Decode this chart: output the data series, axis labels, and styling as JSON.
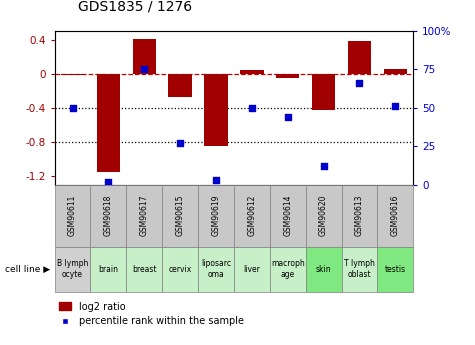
{
  "title": "GDS1835 / 1276",
  "gsm_labels": [
    "GSM90611",
    "GSM90618",
    "GSM90617",
    "GSM90615",
    "GSM90619",
    "GSM90612",
    "GSM90614",
    "GSM90620",
    "GSM90613",
    "GSM90616"
  ],
  "cell_line_labels": [
    "B lymph\nocyte",
    "brain",
    "breast",
    "cervix",
    "liposarc\noma",
    "liver",
    "macroph\nage",
    "skin",
    "T lymph\noblast",
    "testis"
  ],
  "cell_line_colors": [
    "#d0d0d0",
    "#c8f0c8",
    "#c8f0c8",
    "#c8f0c8",
    "#c8f0c8",
    "#c8f0c8",
    "#c8f0c8",
    "#80e880",
    "#c8f0c8",
    "#80e880"
  ],
  "gsm_box_color": "#c8c8c8",
  "log2_ratio": [
    -0.02,
    -1.15,
    0.41,
    -0.27,
    -0.85,
    0.04,
    -0.05,
    -0.42,
    0.38,
    0.06
  ],
  "percentile_rank": [
    50,
    2,
    75,
    27,
    3,
    50,
    44,
    12,
    66,
    51
  ],
  "ylim_left": [
    -1.3,
    0.5
  ],
  "ylim_right": [
    0,
    100
  ],
  "bar_color": "#a00000",
  "dot_color": "#0000cc",
  "dashed_line_color": "#cc0000",
  "background_color": "#ffffff",
  "grid_color": "#000000",
  "border_color": "#808080"
}
